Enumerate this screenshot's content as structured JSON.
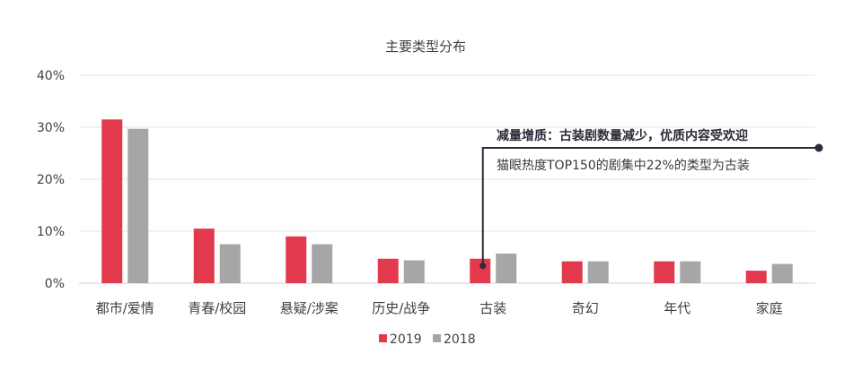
{
  "chart_data": {
    "type": "bar",
    "title": "主要类型分布",
    "categories": [
      "都市/爱情",
      "青春/校园",
      "悬疑/涉案",
      "历史/战争",
      "古装",
      "奇幻",
      "年代",
      "家庭"
    ],
    "series": [
      {
        "name": "2019",
        "color": "#e23a4c",
        "values": [
          31.5,
          10.5,
          9.0,
          4.7,
          4.7,
          4.2,
          4.2,
          2.4
        ]
      },
      {
        "name": "2018",
        "color": "#a6a6a6",
        "values": [
          29.7,
          7.5,
          7.5,
          4.4,
          5.7,
          4.2,
          4.2,
          3.7
        ]
      }
    ],
    "y_ticks": [
      "0%",
      "10%",
      "20%",
      "30%",
      "40%"
    ],
    "ylim": [
      0,
      40
    ],
    "y_unit": "%",
    "grid": true,
    "legend": "bottom",
    "annotation": {
      "headline": "减量增质：古装剧数量减少，优质内容受欢迎",
      "detail": "猫眼热度TOP150的剧集中22%的类型为古装",
      "target_category": "古装",
      "line_color": "#2b2b3a"
    }
  }
}
